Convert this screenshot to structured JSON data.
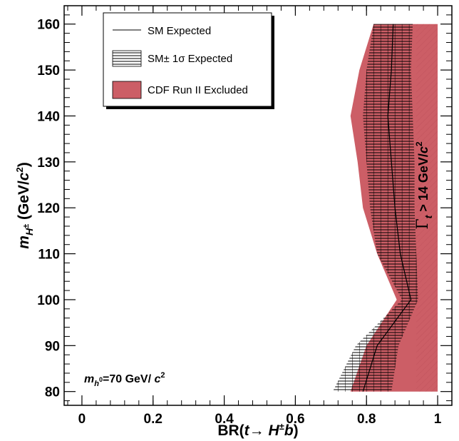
{
  "chart_data": {
    "type": "area",
    "xlabel": "BR(t→ H±b)",
    "ylabel": "m_H± (GeV/c²)",
    "xlim": [
      -0.05,
      1.04
    ],
    "ylim": [
      77,
      164
    ],
    "xticks": [
      0,
      0.2,
      0.4,
      0.6,
      0.8,
      1
    ],
    "xtick_labels": [
      "0",
      "0.2",
      "0.4",
      "0.6",
      "0.8",
      "1"
    ],
    "yticks": [
      80,
      90,
      100,
      110,
      120,
      130,
      140,
      150,
      160
    ],
    "ytick_labels": [
      "80",
      "90",
      "100",
      "110",
      "120",
      "130",
      "140",
      "150",
      "160"
    ],
    "excluded_region": {
      "name": "CDF Run II Excluded",
      "color": "#cc5e66",
      "boundary": [
        {
          "m": 80,
          "br": 0.755
        },
        {
          "m": 90,
          "br": 0.8
        },
        {
          "m": 100,
          "br": 0.885
        },
        {
          "m": 110,
          "br": 0.83
        },
        {
          "m": 120,
          "br": 0.79
        },
        {
          "m": 130,
          "br": 0.775
        },
        {
          "m": 140,
          "br": 0.755
        },
        {
          "m": 150,
          "br": 0.78
        },
        {
          "m": 160,
          "br": 0.82
        }
      ],
      "upper_br": 1.0
    },
    "expected_band": {
      "name": "SM± 1σ Expected",
      "lower": [
        {
          "m": 80,
          "br": 0.705
        },
        {
          "m": 90,
          "br": 0.77
        },
        {
          "m": 100,
          "br": 0.9
        },
        {
          "m": 110,
          "br": 0.83
        },
        {
          "m": 120,
          "br": 0.81
        },
        {
          "m": 130,
          "br": 0.8
        },
        {
          "m": 140,
          "br": 0.79
        },
        {
          "m": 150,
          "br": 0.8
        },
        {
          "m": 160,
          "br": 0.82
        }
      ],
      "upper": [
        {
          "m": 80,
          "br": 0.87
        },
        {
          "m": 90,
          "br": 0.89
        },
        {
          "m": 100,
          "br": 0.945
        },
        {
          "m": 110,
          "br": 0.94
        },
        {
          "m": 120,
          "br": 0.935
        },
        {
          "m": 130,
          "br": 0.935
        },
        {
          "m": 140,
          "br": 0.93
        },
        {
          "m": 150,
          "br": 0.925
        },
        {
          "m": 160,
          "br": 0.93
        }
      ]
    },
    "expected_line": {
      "name": "SM Expected",
      "points": [
        {
          "m": 80,
          "br": 0.79
        },
        {
          "m": 90,
          "br": 0.83
        },
        {
          "m": 100,
          "br": 0.925
        },
        {
          "m": 110,
          "br": 0.895
        },
        {
          "m": 120,
          "br": 0.88
        },
        {
          "m": 130,
          "br": 0.87
        },
        {
          "m": 140,
          "br": 0.86
        },
        {
          "m": 150,
          "br": 0.87
        },
        {
          "m": 160,
          "br": 0.875
        }
      ]
    },
    "annotations": {
      "width_label": "Γ_t > 14 GeV/c²",
      "mass_label": "m_h⁰=70 GeV/ c²"
    },
    "legend_position": "top-left"
  }
}
